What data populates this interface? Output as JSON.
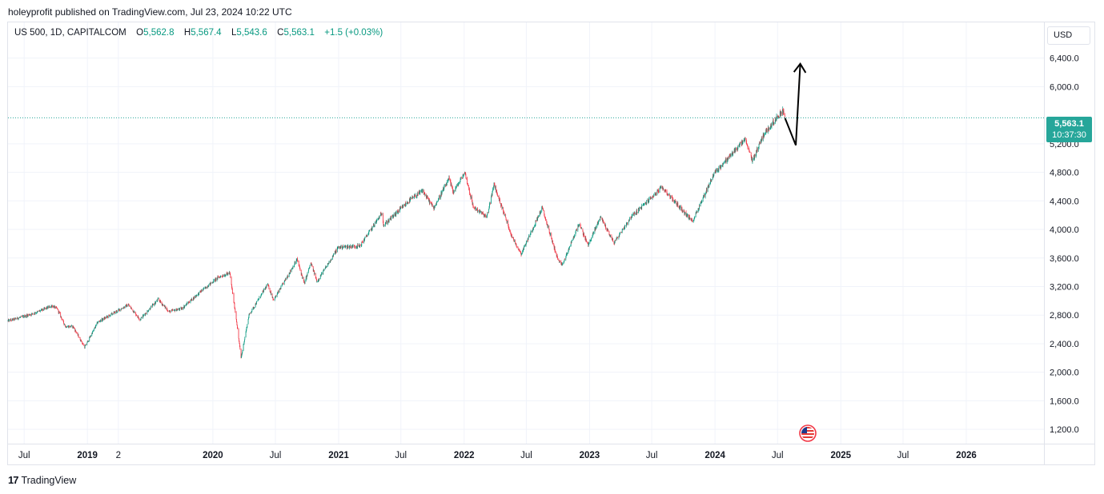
{
  "header": {
    "published_text": "holeyprofit published on TradingView.com, Jul 23, 2024 10:22 UTC"
  },
  "legend": {
    "symbol": "US 500, 1D, CAPITALCOM",
    "o_label": "O",
    "o_value": "5,562.8",
    "h_label": "H",
    "h_value": "5,567.4",
    "l_label": "L",
    "l_value": "5,543.6",
    "c_label": "C",
    "c_value": "5,563.1",
    "change": "+1.5 (+0.03%)"
  },
  "currency_button": "USD",
  "price_badge": {
    "price": "5,563.1",
    "countdown": "10:37:30"
  },
  "footer": {
    "logo_mark": "17",
    "logo_text": "TradingView"
  },
  "colors": {
    "up": "#089981",
    "down": "#f23645",
    "badge": "#26a69a",
    "grid": "#f0f3fa"
  },
  "icons": {
    "event_flag": "us-flag-icon"
  },
  "chart_data": {
    "type": "candlestick",
    "symbol": "US 500",
    "interval": "1D",
    "y_axis": {
      "ticks": [
        1200,
        1600,
        2000,
        2400,
        2800,
        3200,
        3600,
        4000,
        4400,
        4800,
        5200,
        6000,
        6400
      ],
      "tick_labels": [
        "1,200.0",
        "1,600.0",
        "2,000.0",
        "2,400.0",
        "2,800.0",
        "3,200.0",
        "3,600.0",
        "4,000.0",
        "4,400.0",
        "4,800.0",
        "5,200.0",
        "6,000.0",
        "6,400.0"
      ],
      "ylim": [
        1000,
        6900
      ]
    },
    "x_axis": {
      "xlim": [
        "2018-05-15",
        "2026-08-15"
      ],
      "ticks": [
        {
          "date": "2018-07-01",
          "label": "Jul",
          "bold": false
        },
        {
          "date": "2019-01-01",
          "label": "2019",
          "bold": true
        },
        {
          "date": "2019-04-01",
          "label": "2",
          "bold": false
        },
        {
          "date": "2020-01-01",
          "label": "2020",
          "bold": true
        },
        {
          "date": "2020-07-01",
          "label": "Jul",
          "bold": false
        },
        {
          "date": "2021-01-01",
          "label": "2021",
          "bold": true
        },
        {
          "date": "2021-07-01",
          "label": "Jul",
          "bold": false
        },
        {
          "date": "2022-01-01",
          "label": "2022",
          "bold": true
        },
        {
          "date": "2022-07-01",
          "label": "Jul",
          "bold": false
        },
        {
          "date": "2023-01-01",
          "label": "2023",
          "bold": true
        },
        {
          "date": "2023-07-01",
          "label": "Jul",
          "bold": false
        },
        {
          "date": "2024-01-01",
          "label": "2024",
          "bold": true
        },
        {
          "date": "2024-07-01",
          "label": "Jul",
          "bold": false
        },
        {
          "date": "2025-01-01",
          "label": "2025",
          "bold": true
        },
        {
          "date": "2025-07-01",
          "label": "Jul",
          "bold": false
        },
        {
          "date": "2026-01-01",
          "label": "2026",
          "bold": true
        }
      ]
    },
    "price_path": [
      [
        "2018-05-15",
        2720
      ],
      [
        "2018-06-15",
        2760
      ],
      [
        "2018-08-01",
        2830
      ],
      [
        "2018-09-20",
        2930
      ],
      [
        "2018-10-05",
        2890
      ],
      [
        "2018-10-29",
        2640
      ],
      [
        "2018-11-20",
        2640
      ],
      [
        "2018-12-24",
        2350
      ],
      [
        "2019-01-31",
        2700
      ],
      [
        "2019-03-15",
        2820
      ],
      [
        "2019-04-30",
        2945
      ],
      [
        "2019-06-03",
        2740
      ],
      [
        "2019-07-26",
        3020
      ],
      [
        "2019-08-26",
        2850
      ],
      [
        "2019-10-02",
        2890
      ],
      [
        "2019-11-29",
        3140
      ],
      [
        "2020-01-17",
        3330
      ],
      [
        "2020-02-19",
        3390
      ],
      [
        "2020-03-09",
        2750
      ],
      [
        "2020-03-23",
        2200
      ],
      [
        "2020-04-15",
        2800
      ],
      [
        "2020-06-08",
        3230
      ],
      [
        "2020-06-26",
        3010
      ],
      [
        "2020-09-02",
        3580
      ],
      [
        "2020-09-23",
        3240
      ],
      [
        "2020-10-12",
        3530
      ],
      [
        "2020-10-30",
        3270
      ],
      [
        "2020-12-31",
        3750
      ],
      [
        "2021-03-04",
        3770
      ],
      [
        "2021-05-07",
        4230
      ],
      [
        "2021-05-12",
        4060
      ],
      [
        "2021-07-29",
        4420
      ],
      [
        "2021-09-02",
        4540
      ],
      [
        "2021-10-04",
        4300
      ],
      [
        "2021-11-18",
        4705
      ],
      [
        "2021-12-01",
        4520
      ],
      [
        "2022-01-03",
        4800
      ],
      [
        "2022-01-27",
        4320
      ],
      [
        "2022-03-08",
        4170
      ],
      [
        "2022-03-29",
        4630
      ],
      [
        "2022-05-20",
        3900
      ],
      [
        "2022-06-16",
        3660
      ],
      [
        "2022-08-16",
        4300
      ],
      [
        "2022-09-30",
        3590
      ],
      [
        "2022-10-13",
        3490
      ],
      [
        "2022-12-01",
        4080
      ],
      [
        "2022-12-28",
        3780
      ],
      [
        "2023-02-02",
        4180
      ],
      [
        "2023-03-13",
        3810
      ],
      [
        "2023-05-01",
        4170
      ],
      [
        "2023-07-31",
        4590
      ],
      [
        "2023-10-27",
        4110
      ],
      [
        "2023-12-29",
        4780
      ],
      [
        "2024-03-28",
        5260
      ],
      [
        "2024-04-19",
        4960
      ],
      [
        "2024-05-20",
        5320
      ],
      [
        "2024-07-16",
        5670
      ],
      [
        "2024-07-23",
        5563.1
      ]
    ],
    "last": {
      "date": "2024-07-23",
      "open": 5562.8,
      "high": 5567.4,
      "low": 5543.6,
      "close": 5563.1,
      "change": 1.5,
      "change_pct": 0.03
    },
    "annotation_arrow": [
      [
        "2024-07-23",
        5555
      ],
      [
        "2024-08-23",
        5180
      ],
      [
        "2024-09-05",
        6320
      ]
    ],
    "grid": true
  }
}
